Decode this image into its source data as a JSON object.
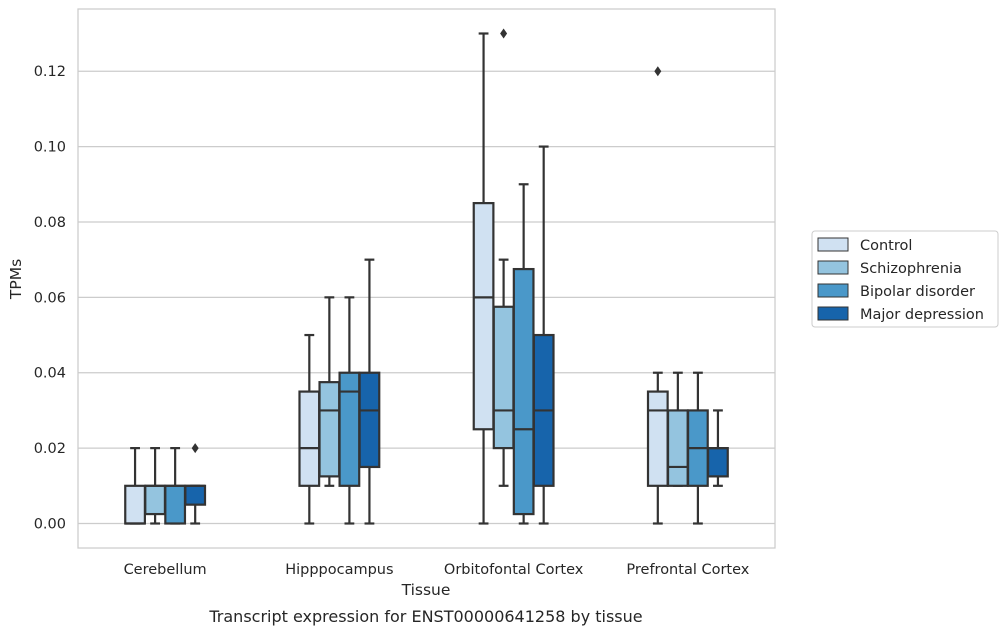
{
  "chart_data": {
    "type": "box",
    "title": "",
    "caption": "Transcript expression for ENST00000641258 by tissue",
    "xlabel": "Tissue",
    "ylabel": "TPMs",
    "ylim": [
      -0.0065,
      0.1365
    ],
    "yticks": [
      "0.00",
      "0.02",
      "0.04",
      "0.06",
      "0.08",
      "0.10",
      "0.12"
    ],
    "ytick_values": [
      0,
      0.02,
      0.04,
      0.06,
      0.08,
      0.1,
      0.12
    ],
    "grid": "horizontal",
    "legend_position": "right",
    "categories": [
      "Cerebellum",
      "Hipppocampus",
      "Orbitofontal Cortex",
      "Prefrontal Cortex"
    ],
    "series": [
      {
        "name": "Control",
        "color": "#d0e1f2",
        "boxes": [
          {
            "whisker_low": 0,
            "q1": 0,
            "median": 0,
            "q3": 0.01,
            "whisker_high": 0.02,
            "outliers": []
          },
          {
            "whisker_low": 0,
            "q1": 0.01,
            "median": 0.02,
            "q3": 0.035,
            "whisker_high": 0.05,
            "outliers": []
          },
          {
            "whisker_low": 0,
            "q1": 0.025,
            "median": 0.06,
            "q3": 0.085,
            "whisker_high": 0.13,
            "outliers": []
          },
          {
            "whisker_low": 0,
            "q1": 0.01,
            "median": 0.03,
            "q3": 0.035,
            "whisker_high": 0.04,
            "outliers": [
              0.12
            ]
          }
        ]
      },
      {
        "name": "Schizophrenia",
        "color": "#94c4df",
        "boxes": [
          {
            "whisker_low": 0,
            "q1": 0.0025,
            "median": 0.01,
            "q3": 0.01,
            "whisker_high": 0.02,
            "outliers": []
          },
          {
            "whisker_low": 0.01,
            "q1": 0.0125,
            "median": 0.03,
            "q3": 0.0375,
            "whisker_high": 0.06,
            "outliers": []
          },
          {
            "whisker_low": 0.01,
            "q1": 0.02,
            "median": 0.03,
            "q3": 0.0575,
            "whisker_high": 0.07,
            "outliers": [
              0.13
            ]
          },
          {
            "whisker_low": 0.01,
            "q1": 0.01,
            "median": 0.015,
            "q3": 0.03,
            "whisker_high": 0.04,
            "outliers": []
          }
        ]
      },
      {
        "name": "Bipolar disorder",
        "color": "#4a98c9",
        "boxes": [
          {
            "whisker_low": 0,
            "q1": 0,
            "median": 0.01,
            "q3": 0.01,
            "whisker_high": 0.02,
            "outliers": []
          },
          {
            "whisker_low": 0,
            "q1": 0.01,
            "median": 0.035,
            "q3": 0.04,
            "whisker_high": 0.06,
            "outliers": []
          },
          {
            "whisker_low": 0,
            "q1": 0.0025,
            "median": 0.025,
            "q3": 0.0675,
            "whisker_high": 0.09,
            "outliers": []
          },
          {
            "whisker_low": 0,
            "q1": 0.01,
            "median": 0.02,
            "q3": 0.03,
            "whisker_high": 0.04,
            "outliers": []
          }
        ]
      },
      {
        "name": "Major depression",
        "color": "#1764ab",
        "boxes": [
          {
            "whisker_low": 0,
            "q1": 0.005,
            "median": 0.01,
            "q3": 0.01,
            "whisker_high": 0.01,
            "outliers": [
              0.02
            ]
          },
          {
            "whisker_low": 0,
            "q1": 0.015,
            "median": 0.03,
            "q3": 0.04,
            "whisker_high": 0.07,
            "outliers": []
          },
          {
            "whisker_low": 0,
            "q1": 0.01,
            "median": 0.03,
            "q3": 0.05,
            "whisker_high": 0.1,
            "outliers": []
          },
          {
            "whisker_low": 0.01,
            "q1": 0.0125,
            "median": 0.02,
            "q3": 0.02,
            "whisker_high": 0.03,
            "outliers": []
          }
        ]
      }
    ]
  }
}
